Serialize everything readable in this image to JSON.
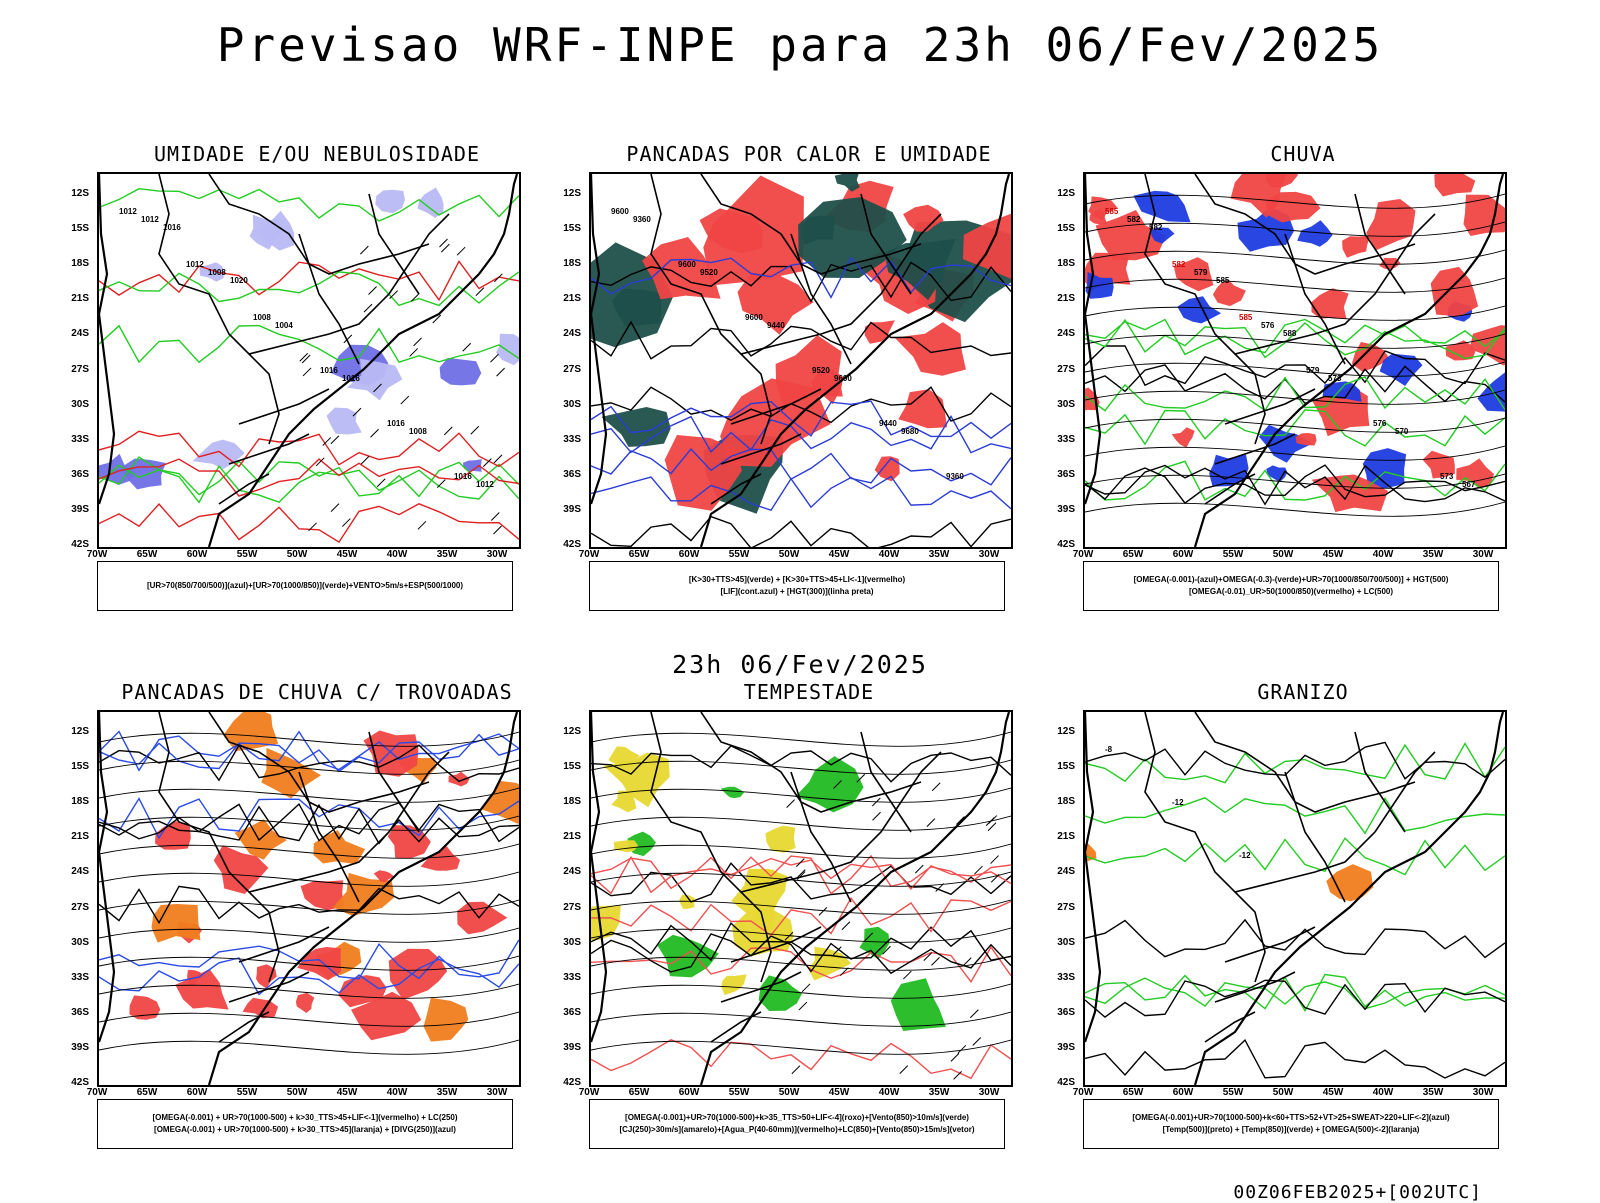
{
  "title": "Previsao WRF-INPE  para 23h 06/Fev/2025",
  "middle_title": "23h 06/Fev/2025",
  "footer": "00Z06FEB2025+[002UTC]",
  "latitude_ticks": [
    "12S",
    "15S",
    "18S",
    "21S",
    "24S",
    "27S",
    "30S",
    "33S",
    "36S",
    "39S",
    "42S"
  ],
  "longitude_ticks": [
    "70W",
    "65W",
    "60W",
    "55W",
    "50W",
    "45W",
    "40W",
    "35W",
    "30W"
  ],
  "panels": [
    {
      "title": "UMIDADE E/OU NEBULOSIDADE",
      "legend": [
        "[UR>70(850/700/500)](azul)+[UR>70(1000/850)](verde)+VENTO>5m/s+ESP(500/1000)"
      ],
      "contour_labels": [
        "1012",
        "1012",
        "1008",
        "1016",
        "1016",
        "1016",
        "1012",
        "1008",
        "1004",
        "1016",
        "1008",
        "1012",
        "1016",
        "1020"
      ],
      "colors": {
        "fill_primary": "#b9b9f5",
        "fill_secondary": "#6f6fe6",
        "line_a": "#22cc22",
        "line_b": "#e02020",
        "line_c": "#000000"
      }
    },
    {
      "title": "PANCADAS POR CALOR E UMIDADE",
      "legend": [
        "[K>30+TTS>45](verde) + [K>30+TTS>45+LI<-1](vermelho)",
        "[LIF](cont.azul) + [HGT(300)](linha preta)"
      ],
      "contour_labels": [
        "9600",
        "9600",
        "9600",
        "9520",
        "9440",
        "9360",
        "9360",
        "9520",
        "9440",
        "9600",
        "9680"
      ],
      "colors": {
        "fill_primary": "#f04444",
        "fill_secondary": "#1f4f4a",
        "line_a": "#2a3cd8",
        "line_b": "#000000",
        "line_c": "#000000"
      }
    },
    {
      "title": "CHUVA",
      "legend": [
        "[OMEGA(-0.001)-(azul)+OMEGA(-0.3)-(verde)+UR>70(1000/850/700/500)] + HGT(500)",
        "[OMEGA(-0.01)_UR>50(1000/850)(vermelho) + LC(500)"
      ],
      "contour_labels": [
        "585",
        "582",
        "585",
        "579",
        "576",
        "573",
        "582",
        "579",
        "576",
        "573",
        "570",
        "567",
        "582",
        "585",
        "588"
      ],
      "colors": {
        "fill_primary": "#f04444",
        "fill_secondary": "#1e3be0",
        "line_a": "#22cc22",
        "line_b": "#000000",
        "line_c": "#000000"
      }
    },
    {
      "title": "PANCADAS DE CHUVA C/ TROVOADAS",
      "legend": [
        "[OMEGA(-0.001) + UR>70(1000-500) + k>30_TTS>45+LIF<-1](vermelho) + LC(250)",
        "[OMEGA(-0.001) + UR>70(1000-500) + k>30_TTS>45](laranja) + [DIVG(250)](azul)"
      ],
      "contour_labels": [],
      "colors": {
        "fill_primary": "#f04444",
        "fill_secondary": "#f07d1e",
        "line_a": "#2a4be8",
        "line_b": "#000000",
        "line_c": "#000000"
      }
    },
    {
      "title": "TEMPESTADE",
      "legend": [
        "[OMEGA(-0.001)+UR>70(1000-500)+k>35_TTS>50+LIF<-4](roxo)+[Vento(850)>10m/s](verde)",
        "[CJ(250)>30m/s](amarelo)+[Agua_P(40-60mm)](vermelho)+LC(850)+[Vento(850)>15m/s](vetor)"
      ],
      "contour_labels": [],
      "colors": {
        "fill_primary": "#e8d830",
        "fill_secondary": "#22bb22",
        "line_a": "#f05050",
        "line_b": "#000000",
        "line_c": "#000000"
      }
    },
    {
      "title": "GRANIZO",
      "legend": [
        "[OMEGA(-0.001)+UR>70(1000-500)+k<60+TTS>52+VT>25+SWEAT>220+LIF<-2](azul)",
        "[Temp(500)](preto) + [Temp(850)](verde) + [OMEGA(500)<-2](laranja)"
      ],
      "contour_labels": [
        "-8",
        "-12",
        "-12"
      ],
      "colors": {
        "fill_primary": "#ffffff",
        "fill_secondary": "#f07d1e",
        "line_a": "#22cc22",
        "line_b": "#000000",
        "line_c": "#000000"
      }
    }
  ]
}
